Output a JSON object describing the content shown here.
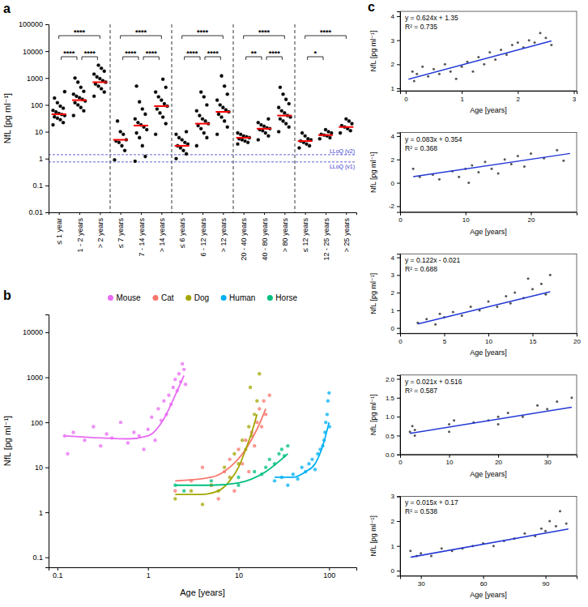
{
  "chart_data": [
    {
      "type": "scatter",
      "panel_label": "a",
      "ylabel": "NfL [pg ml⁻¹]",
      "categories": [
        "≤ 1 year",
        "1 - 2 years",
        "> 2 years",
        "≤ 7 years",
        "7 - 14 years",
        "> 14 years",
        "≤ 6 years",
        "6 - 12 years",
        "> 12 years",
        "20 - 40 years",
        "40 - 80 years",
        "> 80 years",
        "≤ 12 years",
        "12 - 25 years",
        "> 25 years"
      ],
      "values": [
        [
          18,
          22,
          28,
          32,
          36,
          40,
          44,
          48,
          55,
          62,
          75,
          90,
          120,
          180,
          310
        ],
        [
          40,
          60,
          80,
          100,
          120,
          140,
          160,
          185,
          210,
          250,
          320,
          450,
          700,
          1000
        ],
        [
          210,
          300,
          400,
          500,
          600,
          700,
          800,
          950,
          1100,
          1400,
          1800,
          2300,
          3000
        ],
        [
          0.9,
          2,
          3,
          4,
          4.5,
          5,
          8,
          10,
          25
        ],
        [
          0.8,
          1.2,
          3,
          6,
          9,
          12,
          15,
          18,
          22,
          30,
          45,
          70,
          130,
          500
        ],
        [
          8,
          20,
          35,
          50,
          70,
          90,
          110,
          150,
          200,
          300,
          450,
          900
        ],
        [
          1,
          1.5,
          2,
          2.5,
          3,
          3.5,
          4,
          5,
          6,
          8,
          10
        ],
        [
          3,
          6,
          9,
          13,
          17,
          20,
          25,
          30,
          40,
          60,
          100,
          200,
          300
        ],
        [
          8,
          15,
          25,
          35,
          45,
          55,
          65,
          80,
          100,
          150,
          250,
          500,
          1200
        ],
        [
          3.5,
          4,
          4.5,
          5,
          5.5,
          6,
          6.5,
          7,
          8,
          9
        ],
        [
          5,
          7,
          9,
          11,
          12,
          13,
          14,
          16,
          18,
          22,
          30
        ],
        [
          10,
          15,
          20,
          25,
          30,
          35,
          40,
          50,
          60,
          80,
          110,
          160,
          250,
          450
        ],
        [
          2.5,
          3,
          3.5,
          4,
          4.5,
          5,
          5.5,
          7,
          9
        ],
        [
          5.5,
          6,
          7,
          7.5,
          8,
          9,
          10,
          12
        ],
        [
          9,
          11,
          13,
          15,
          17,
          20,
          25,
          30
        ]
      ],
      "medians": [
        45,
        150,
        700,
        5,
        17,
        90,
        3,
        20,
        55,
        6,
        13,
        40,
        4.5,
        7.5,
        15
      ],
      "color": "#000000",
      "log": "y",
      "grid": false,
      "ylim": [
        0.01,
        100000
      ],
      "yticks": [
        0.01,
        0.1,
        1,
        10,
        100,
        1000,
        10000,
        100000
      ],
      "reference_lines": [
        {
          "value": 1.4,
          "label": "LLoQ (v2)",
          "color": "#3a3acc"
        },
        {
          "value": 0.75,
          "label": "LLoQ (v1)",
          "color": "#3a3acc"
        }
      ],
      "comparisons": [
        {
          "groups": [
            "≤ 1 year",
            "1 - 2 years"
          ],
          "label": "****"
        },
        {
          "groups": [
            "1 - 2 years",
            "> 2 years"
          ],
          "label": "****"
        },
        {
          "groups": [
            "≤ 1 year",
            "> 2 years"
          ],
          "label": "****"
        },
        {
          "groups": [
            "≤ 7 years",
            "7 - 14 years"
          ],
          "label": "****"
        },
        {
          "groups": [
            "7 - 14 years",
            "> 14 years"
          ],
          "label": "****"
        },
        {
          "groups": [
            "≤ 7 years",
            "> 14 years"
          ],
          "label": "****"
        },
        {
          "groups": [
            "≤ 6 years",
            "6 - 12 years"
          ],
          "label": "****"
        },
        {
          "groups": [
            "6 - 12 years",
            "> 12 years"
          ],
          "label": "****"
        },
        {
          "groups": [
            "≤ 6 years",
            "> 12 years"
          ],
          "label": "****"
        },
        {
          "groups": [
            "20 - 40 years",
            "40 - 80 years"
          ],
          "label": "**"
        },
        {
          "groups": [
            "40 - 80 years",
            "> 80 years"
          ],
          "label": "****"
        },
        {
          "groups": [
            "20 - 40 years",
            "> 80 years"
          ],
          "label": "****"
        },
        {
          "groups": [
            "≤ 12 years",
            "12 - 25 years"
          ],
          "label": "*"
        },
        {
          "groups": [
            "≤ 12 years",
            "> 25 years"
          ],
          "label": "****"
        }
      ]
    },
    {
      "type": "scatter",
      "panel_label": "b",
      "xlabel": "Age [years]",
      "ylabel": "NfL [pg ml⁻¹]",
      "log": true,
      "grid": false,
      "legend": "top",
      "xlim": [
        0.08,
        200
      ],
      "ylim": [
        0.06,
        25000
      ],
      "xticks": [
        0.1,
        1,
        10,
        100
      ],
      "yticks": [
        0.1,
        1,
        10,
        100,
        1000,
        10000
      ],
      "series": [
        {
          "name": "Mouse",
          "color": "#E76BF3",
          "x": [
            0.12,
            0.13,
            0.15,
            0.2,
            0.25,
            0.3,
            0.35,
            0.4,
            0.5,
            0.6,
            0.7,
            0.8,
            0.9,
            1.0,
            1.1,
            1.2,
            1.3,
            1.4,
            1.5,
            1.6,
            1.7,
            1.8,
            1.9,
            2.0,
            2.1,
            2.2,
            2.3,
            2.4,
            2.5,
            2.6
          ],
          "values": [
            50,
            20,
            60,
            40,
            80,
            30,
            55,
            45,
            100,
            35,
            60,
            50,
            25,
            70,
            130,
            40,
            200,
            110,
            300,
            150,
            400,
            250,
            600,
            900,
            500,
            1200,
            800,
            2000,
            1500,
            700
          ],
          "fit_x": [
            0.12,
            0.3,
            0.6,
            1,
            1.5,
            2,
            2.5
          ],
          "fit_values": [
            50,
            45,
            43,
            50,
            120,
            400,
            1100
          ]
        },
        {
          "name": "Cat",
          "color": "#F8766D",
          "x": [
            2,
            3,
            4,
            5,
            6,
            7,
            8,
            9,
            10,
            11,
            12,
            13,
            14,
            15,
            16,
            17,
            18,
            19,
            20,
            22
          ],
          "values": [
            3,
            5,
            10,
            4,
            2,
            8,
            15,
            3,
            25,
            12,
            40,
            8,
            60,
            30,
            100,
            200,
            80,
            300,
            150,
            400
          ],
          "fit_x": [
            2,
            5,
            8,
            12,
            16,
            20
          ],
          "fit_values": [
            5,
            6,
            10,
            25,
            70,
            200
          ]
        },
        {
          "name": "Dog",
          "color": "#A3A500",
          "x": [
            2,
            3,
            4,
            5,
            6,
            7,
            8,
            9,
            10,
            11,
            12,
            13,
            14,
            15,
            16,
            17,
            13.5
          ],
          "values": [
            2,
            3,
            1.5,
            4,
            3,
            10,
            6,
            20,
            12,
            40,
            25,
            80,
            50,
            150,
            300,
            1200,
            600
          ],
          "fit_x": [
            2,
            4,
            6,
            8,
            10,
            12,
            14,
            16
          ],
          "fit_values": [
            2.5,
            2.5,
            3,
            5,
            10,
            25,
            60,
            150
          ]
        },
        {
          "name": "Human",
          "color": "#00B0F6",
          "x": [
            25,
            30,
            35,
            40,
            45,
            50,
            55,
            60,
            65,
            70,
            75,
            80,
            85,
            88,
            90,
            92,
            95,
            97,
            100,
            101
          ],
          "values": [
            5,
            6,
            4,
            7,
            5.5,
            10,
            8,
            12,
            15,
            9,
            20,
            25,
            30,
            40,
            60,
            100,
            150,
            300,
            450,
            80
          ],
          "fit_x": [
            25,
            40,
            55,
            70,
            85,
            100
          ],
          "fit_values": [
            6,
            6,
            8,
            12,
            30,
            100
          ]
        },
        {
          "name": "Horse",
          "color": "#00BF7D",
          "x": [
            2,
            2.5,
            5,
            10,
            10,
            15,
            18,
            20,
            22,
            25,
            28,
            30,
            32,
            35
          ],
          "values": [
            4,
            3,
            5,
            4,
            6,
            8,
            7,
            10,
            15,
            12,
            20,
            25,
            18,
            30
          ],
          "fit_x": [
            2,
            5,
            10,
            20,
            35
          ],
          "fit_values": [
            4,
            4,
            4.5,
            8,
            20
          ]
        }
      ]
    },
    {
      "type": "scatter",
      "panel_label": "c",
      "xlabel": "Age [years]",
      "ylabel": "NfL [pg ml⁻¹]",
      "color": "#555555",
      "grid": false,
      "x": [
        0.12,
        0.15,
        0.2,
        0.3,
        0.4,
        0.5,
        0.6,
        0.7,
        0.8,
        0.9,
        1.0,
        1.1,
        1.2,
        1.3,
        1.4,
        1.5,
        1.6,
        1.7,
        1.8,
        1.9,
        2.0,
        2.1,
        2.2,
        2.3,
        2.4,
        2.5,
        2.6
      ],
      "values": [
        1.7,
        1.3,
        1.6,
        1.9,
        1.5,
        1.8,
        1.6,
        2.0,
        1.7,
        1.4,
        1.9,
        2.1,
        1.7,
        2.3,
        2.0,
        2.5,
        2.2,
        2.6,
        2.4,
        2.8,
        2.9,
        2.7,
        3.0,
        2.9,
        3.3,
        3.1,
        2.8
      ],
      "xlim": [
        -0.1,
        3.05
      ],
      "ylim": [
        0.9,
        4.2
      ],
      "xticks": [
        0,
        1,
        2,
        3
      ],
      "yticks": [
        1,
        2,
        3,
        4
      ],
      "fit": {
        "type": "line",
        "color": "#2338d6",
        "x": [
          0.05,
          2.6
        ],
        "values": [
          1.381,
          2.97
        ]
      },
      "annotations": [
        "y = 0.624x + 1.35",
        "R² = 0.735"
      ]
    },
    {
      "type": "scatter",
      "xlabel": "Age [years]",
      "ylabel": "NfL [pg ml⁻¹]",
      "color": "#555555",
      "grid": false,
      "x": [
        2,
        3,
        5,
        6,
        8,
        9,
        10,
        10.5,
        11,
        12,
        13,
        14,
        15,
        16,
        17,
        18,
        19,
        20,
        22,
        24,
        25
      ],
      "values": [
        1.2,
        0.5,
        0.7,
        0.3,
        1.0,
        0.5,
        1.2,
        0,
        1.5,
        0.9,
        1.8,
        1.2,
        0.8,
        2.0,
        1.6,
        2.3,
        1.4,
        2.5,
        2.1,
        2.8,
        1.9
      ],
      "xlim": [
        0,
        27
      ],
      "ylim": [
        -2.5,
        4.3
      ],
      "xticks": [
        0,
        10,
        20
      ],
      "yticks": [
        -2,
        0,
        2,
        4
      ],
      "fit": {
        "type": "line",
        "color": "#2338d6",
        "x": [
          2,
          26
        ],
        "values": [
          0.52,
          2.512
        ]
      },
      "annotations": [
        "y = 0.083x + 0.354",
        "R² = 0.368"
      ]
    },
    {
      "type": "scatter",
      "xlabel": "Age [years]",
      "ylabel": "NfL [pg ml⁻¹]",
      "color": "#555555",
      "grid": false,
      "x": [
        2,
        3,
        4,
        4.5,
        5,
        6,
        7,
        8,
        9,
        10,
        11,
        12,
        12.5,
        13,
        14,
        15,
        16,
        16.5,
        17,
        14.5
      ],
      "values": [
        0.3,
        0.5,
        0.2,
        0.8,
        0.6,
        0.9,
        0.7,
        1.2,
        1.0,
        1.5,
        1.2,
        1.8,
        1.4,
        2.0,
        1.7,
        2.2,
        2.5,
        1.9,
        3.0,
        2.8
      ],
      "xlim": [
        0,
        20
      ],
      "ylim": [
        -0.3,
        4.2
      ],
      "xticks": [
        0,
        5,
        10,
        15,
        20
      ],
      "yticks": [
        0,
        1,
        2,
        3,
        4
      ],
      "fit": {
        "type": "line",
        "color": "#2338d6",
        "x": [
          2,
          17
        ],
        "values": [
          0.223,
          2.053
        ]
      },
      "annotations": [
        "y = 0.122x - 0.021",
        "R² = 0.688"
      ]
    },
    {
      "type": "scatter",
      "xlabel": "Age [years]",
      "ylabel": "NfL [pg ml⁻¹]",
      "color": "#555555",
      "grid": false,
      "x": [
        2,
        2.5,
        3,
        3,
        10,
        10,
        11,
        15,
        18,
        20,
        20,
        22,
        25,
        28,
        30,
        32,
        35
      ],
      "values": [
        0.6,
        0.75,
        0.5,
        0.65,
        0.8,
        0.6,
        0.9,
        0.85,
        0.9,
        0.8,
        1.0,
        1.1,
        1.0,
        1.3,
        1.2,
        1.4,
        1.5
      ],
      "xlim": [
        0,
        36
      ],
      "ylim": [
        0,
        2.1
      ],
      "xticks": [
        0,
        10,
        20,
        30
      ],
      "yticks": [
        {
          "value": 0,
          "label": "0.0"
        },
        {
          "value": 0.5,
          "label": "0.5"
        },
        {
          "value": 1,
          "label": "1.0"
        },
        {
          "value": 1.5,
          "label": "1.5"
        },
        {
          "value": 2,
          "label": "2.0"
        }
      ],
      "fit": {
        "type": "line",
        "color": "#2338d6",
        "x": [
          2,
          35
        ],
        "values": [
          0.558,
          1.251
        ]
      },
      "annotations": [
        "y = 0.021x + 0.516",
        "R² = 0.587"
      ]
    },
    {
      "type": "scatter",
      "xlabel": "Age [years]",
      "ylabel": "NfL [pg ml⁻¹]",
      "color": "#555555",
      "grid": false,
      "x": [
        25,
        28,
        30,
        35,
        40,
        45,
        50,
        55,
        60,
        65,
        70,
        75,
        80,
        85,
        88,
        90,
        92,
        95,
        97,
        100
      ],
      "values": [
        0.8,
        0.6,
        0.7,
        0.6,
        0.9,
        0.8,
        0.9,
        1.0,
        1.1,
        1.0,
        1.2,
        1.3,
        1.5,
        1.4,
        1.7,
        1.6,
        2.0,
        1.8,
        2.4,
        1.9
      ],
      "xlim": [
        20,
        105
      ],
      "ylim": [
        -0.2,
        3
      ],
      "xticks": [
        30,
        60,
        90
      ],
      "yticks": [
        0,
        1,
        2,
        3
      ],
      "fit": {
        "type": "line",
        "color": "#2338d6",
        "x": [
          25,
          101
        ],
        "values": [
          0.545,
          1.685
        ]
      },
      "annotations": [
        "y = 0.015x + 0.17",
        "R² = 0.538"
      ]
    }
  ]
}
